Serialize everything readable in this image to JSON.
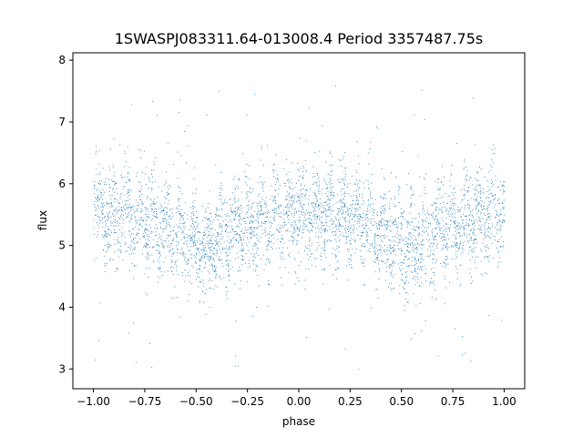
{
  "chart_data": {
    "type": "scatter",
    "title": "1SWASPJ083311.64-013008.4 Period 3357487.75s",
    "xlabel": "phase",
    "ylabel": "flux",
    "xlim": [
      -1.1,
      1.1
    ],
    "ylim": [
      2.68,
      8.12
    ],
    "x_ticks": [
      -1.0,
      -0.75,
      -0.5,
      -0.25,
      0.0,
      0.25,
      0.5,
      0.75,
      1.0
    ],
    "x_tick_labels": [
      "−1.00",
      "−0.75",
      "−0.50",
      "−0.25",
      "0.00",
      "0.25",
      "0.50",
      "0.75",
      "1.00"
    ],
    "y_ticks": [
      3,
      4,
      5,
      6,
      7,
      8
    ],
    "y_tick_labels": [
      "3",
      "4",
      "5",
      "6",
      "7",
      "8"
    ],
    "grid": false,
    "legend": "none",
    "point_color": "#1f77b4",
    "series": [
      {
        "phase_range": [
          -1.0,
          1.0
        ],
        "mean_flux_profile": {
          "phase": [
            -1.0,
            -0.9,
            -0.8,
            -0.7,
            -0.6,
            -0.5,
            -0.45,
            -0.4,
            -0.3,
            -0.2,
            -0.1,
            0.0,
            0.1,
            0.2,
            0.3,
            0.4,
            0.5,
            0.55,
            0.6,
            0.7,
            0.8,
            0.9,
            1.0
          ],
          "flux": [
            5.6,
            5.5,
            5.5,
            5.4,
            5.2,
            5.05,
            4.95,
            5.1,
            5.3,
            5.4,
            5.45,
            5.6,
            5.5,
            5.5,
            5.4,
            5.2,
            5.05,
            4.95,
            5.1,
            5.3,
            5.4,
            5.45,
            5.6
          ]
        },
        "typical_range": [
          4.0,
          6.8
        ],
        "outlier_range": [
          2.9,
          7.6
        ]
      }
    ]
  }
}
